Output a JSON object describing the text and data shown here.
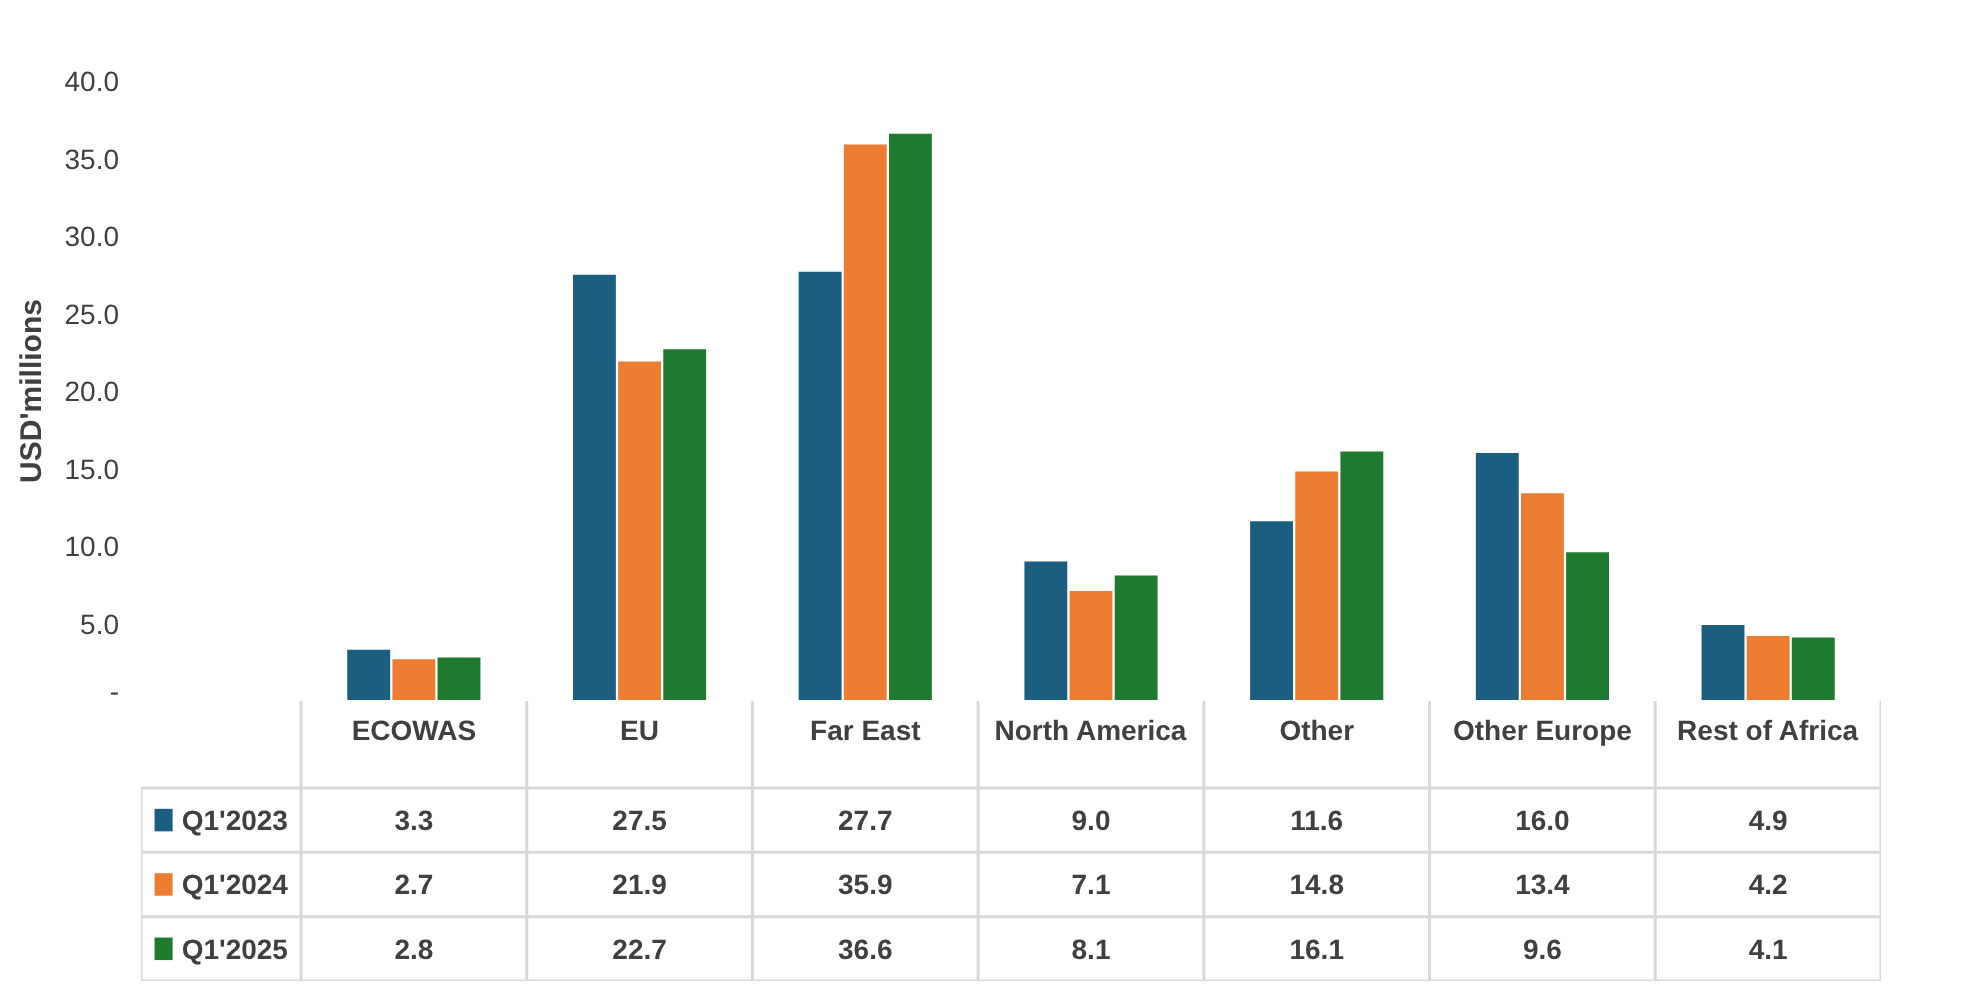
{
  "chart_data": {
    "type": "bar",
    "ylabel": "USD'millions",
    "categories": [
      "ECOWAS",
      "EU",
      "Far East",
      "North America",
      "Other",
      "Other Europe",
      "Rest of Africa"
    ],
    "series": [
      {
        "name": "Q1'2023",
        "color": "#1b5e80",
        "values": [
          3.3,
          27.5,
          27.7,
          9.0,
          11.6,
          16.0,
          4.9
        ],
        "value_labels": [
          "3.3",
          "27.5",
          "27.7",
          "9.0",
          "11.6",
          "16.0",
          "4.9"
        ]
      },
      {
        "name": "Q1'2024",
        "color": "#ed7d31",
        "values": [
          2.7,
          21.9,
          35.9,
          7.1,
          14.8,
          13.4,
          4.2
        ],
        "value_labels": [
          "2.7",
          "21.9",
          "35.9",
          "7.1",
          "14.8",
          "13.4",
          "4.2"
        ]
      },
      {
        "name": "Q1'2025",
        "color": "#1e7a2e",
        "values": [
          2.8,
          22.7,
          36.6,
          8.1,
          16.1,
          9.6,
          4.1
        ],
        "value_labels": [
          "2.8",
          "22.7",
          "36.6",
          "8.1",
          "16.1",
          "9.6",
          "4.1"
        ]
      }
    ],
    "ylim": [
      0,
      40
    ],
    "yticks": [
      {
        "value": 0,
        "label": "-"
      },
      {
        "value": 5,
        "label": "5.0"
      },
      {
        "value": 10,
        "label": "10.0"
      },
      {
        "value": 15,
        "label": "15.0"
      },
      {
        "value": 20,
        "label": "20.0"
      },
      {
        "value": 25,
        "label": "25.0"
      },
      {
        "value": 30,
        "label": "30.0"
      },
      {
        "value": 35,
        "label": "35.0"
      },
      {
        "value": 40,
        "label": "40.0"
      }
    ],
    "grid": false,
    "legend": "bottom"
  }
}
